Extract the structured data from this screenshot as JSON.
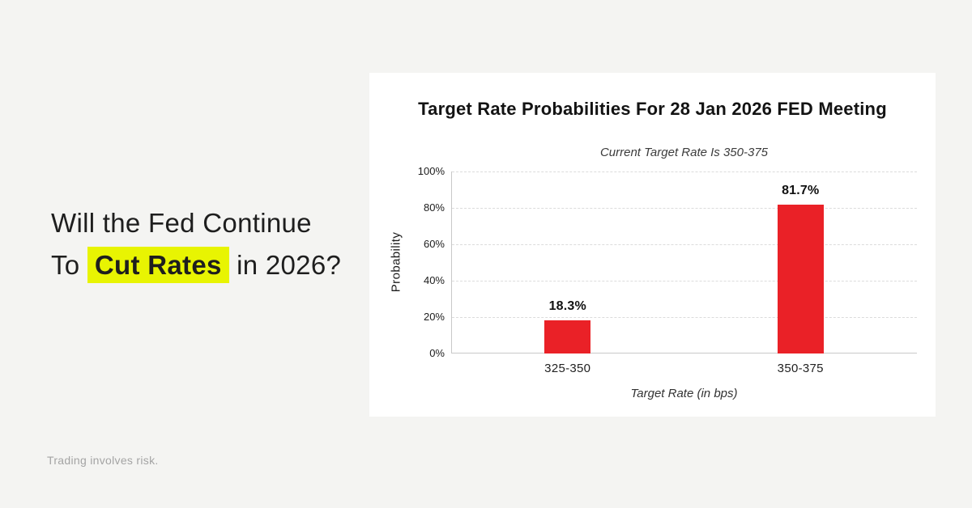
{
  "page": {
    "headline": {
      "line1": "Will the Fed Continue",
      "line2_prefix": "To ",
      "line2_highlight": "Cut Rates",
      "line2_suffix": " in 2026?",
      "highlight_color": "#e8f402"
    },
    "disclaimer": "Trading involves risk."
  },
  "chart_data": {
    "type": "bar",
    "title": "Target Rate Probabilities For 28 Jan 2026 FED Meeting",
    "subtitle": "Current Target Rate Is 350-375",
    "categories": [
      "325-350",
      "350-375"
    ],
    "values": [
      18.3,
      81.7
    ],
    "value_labels": [
      "18.3%",
      "81.7%"
    ],
    "xlabel": "Target Rate (in bps)",
    "ylabel": "Probability",
    "ylim": [
      0,
      100
    ],
    "yticks": [
      "0%",
      "20%",
      "40%",
      "60%",
      "80%",
      "100%"
    ],
    "bar_color": "#ea2127",
    "grid": "horizontal-dashed",
    "legend": "none"
  }
}
